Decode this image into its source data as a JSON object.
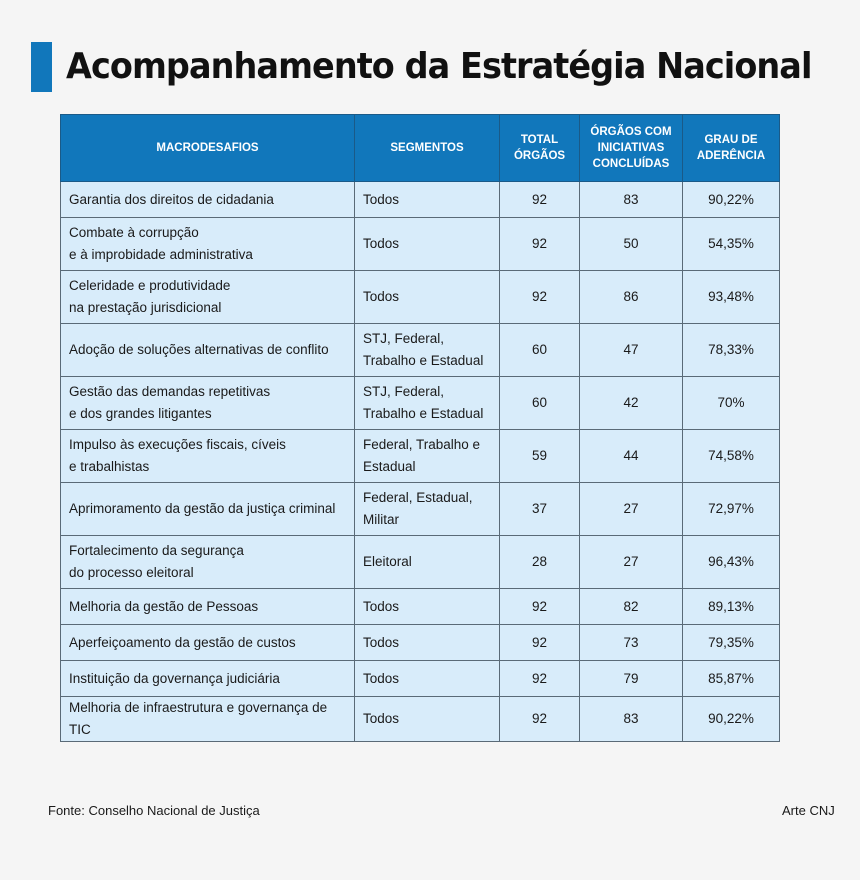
{
  "title": "Acompanhamento da Estratégia Nacional",
  "colors": {
    "accent": "#1177bb",
    "header_bg": "#1177bb",
    "cell_bg": "#d8ecfa"
  },
  "table": {
    "headers": [
      "MACRODESAFIOS",
      "SEGMENTOS",
      "TOTAL ÓRGÃOS",
      "ÓRGÃOS COM INICIATIVAS CONCLUÍDAS",
      "GRAU DE ADERÊNCIA"
    ],
    "rows": [
      {
        "macro": [
          "Garantia dos direitos de cidadania"
        ],
        "seg": [
          "Todos"
        ],
        "total": "92",
        "concl": "83",
        "grau": "90,22%"
      },
      {
        "macro": [
          "Combate à corrupção",
          "e à improbidade administrativa"
        ],
        "seg": [
          "Todos"
        ],
        "total": "92",
        "concl": "50",
        "grau": "54,35%"
      },
      {
        "macro": [
          "Celeridade e produtividade",
          "na prestação jurisdicional"
        ],
        "seg": [
          "Todos"
        ],
        "total": "92",
        "concl": "86",
        "grau": "93,48%"
      },
      {
        "macro": [
          "Adoção de soluções alternativas de conflito"
        ],
        "seg": [
          "STJ, Federal,",
          "Trabalho e Estadual"
        ],
        "total": "60",
        "concl": "47",
        "grau": "78,33%"
      },
      {
        "macro": [
          "Gestão das demandas repetitivas",
          "e dos grandes litigantes"
        ],
        "seg": [
          "STJ, Federal,",
          "Trabalho e Estadual"
        ],
        "total": "60",
        "concl": "42",
        "grau": "70%"
      },
      {
        "macro": [
          "Impulso às execuções fiscais, cíveis",
          "e trabalhistas"
        ],
        "seg": [
          "Federal, Trabalho e",
          "Estadual"
        ],
        "total": "59",
        "concl": "44",
        "grau": "74,58%"
      },
      {
        "macro": [
          "Aprimoramento da gestão da justiça criminal"
        ],
        "seg": [
          "Federal, Estadual,",
          "Militar"
        ],
        "total": "37",
        "concl": "27",
        "grau": "72,97%"
      },
      {
        "macro": [
          "Fortalecimento da segurança",
          "do processo eleitoral"
        ],
        "seg": [
          "Eleitoral"
        ],
        "total": "28",
        "concl": "27",
        "grau": "96,43%"
      },
      {
        "macro": [
          "Melhoria da gestão de Pessoas"
        ],
        "seg": [
          "Todos"
        ],
        "total": "92",
        "concl": "82",
        "grau": "89,13%"
      },
      {
        "macro": [
          "Aperfeiçoamento da gestão de custos"
        ],
        "seg": [
          "Todos"
        ],
        "total": "92",
        "concl": "73",
        "grau": "79,35%"
      },
      {
        "macro": [
          "Instituição da governança judiciária"
        ],
        "seg": [
          "Todos"
        ],
        "total": "92",
        "concl": "79",
        "grau": "85,87%"
      },
      {
        "macro": [
          "Melhoria de infraestrutura e governança de TIC"
        ],
        "seg": [
          "Todos"
        ],
        "total": "92",
        "concl": "83",
        "grau": "90,22%"
      }
    ]
  },
  "footer": {
    "source": "Fonte: Conselho Nacional de Justiça",
    "credit": "Arte CNJ"
  }
}
